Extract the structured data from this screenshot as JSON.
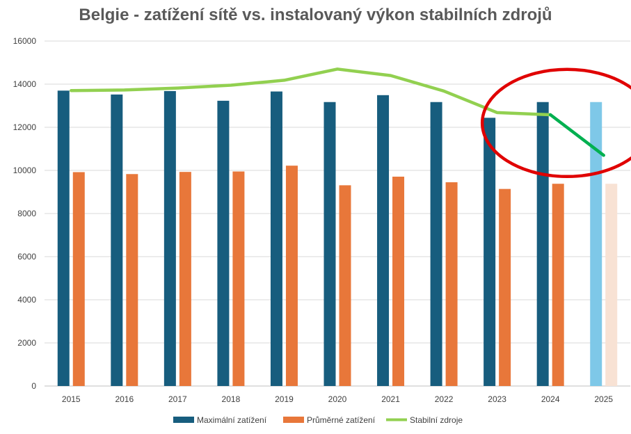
{
  "chart_data": {
    "type": "bar",
    "title": "Belgie - zatížení sítě vs. instalovaný výkon stabilních zdrojů",
    "xlabel": "",
    "ylabel": "",
    "ylim": [
      0,
      16000
    ],
    "yticks": [
      0,
      2000,
      4000,
      6000,
      8000,
      10000,
      12000,
      14000,
      16000
    ],
    "grid": true,
    "legend_position": "bottom",
    "categories": [
      "2015",
      "2016",
      "2017",
      "2018",
      "2019",
      "2020",
      "2021",
      "2022",
      "2023",
      "2024",
      "2025"
    ],
    "series": [
      {
        "name": "Maximální zatížení",
        "type": "bar",
        "color": "#175d7e",
        "values": [
          13700,
          13520,
          13680,
          13230,
          13660,
          13170,
          13490,
          13170,
          12440,
          13170,
          13170
        ],
        "highlight_color_last": "#7ec8e8"
      },
      {
        "name": "Průměrné zatížení",
        "type": "bar",
        "color": "#e8773a",
        "values": [
          9920,
          9830,
          9930,
          9950,
          10220,
          9310,
          9710,
          9450,
          9140,
          9380,
          9380
        ],
        "highlight_color_last": "#f8e2d4"
      },
      {
        "name": "Stabilní zdroje",
        "type": "line",
        "color": "#92d050",
        "values": [
          13700,
          13730,
          13820,
          13950,
          14180,
          14700,
          14400,
          13680,
          12680,
          12580,
          10700
        ],
        "projection_color": "#00b050"
      }
    ],
    "annotation": {
      "type": "ellipse",
      "color": "#e00000",
      "around": [
        "2023",
        "2025"
      ]
    }
  }
}
